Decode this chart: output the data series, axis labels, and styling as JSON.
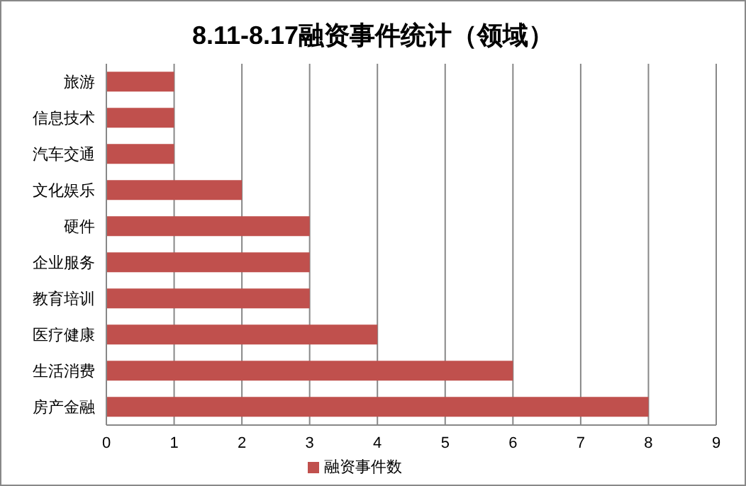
{
  "chart_data": {
    "type": "bar",
    "orientation": "horizontal",
    "title": "8.11-8.17融资事件统计（领域）",
    "categories": [
      "旅游",
      "信息技术",
      "汽车交通",
      "文化娱乐",
      "硬件",
      "企业服务",
      "教育培训",
      "医疗健康",
      "生活消费",
      "房产金融"
    ],
    "series": [
      {
        "name": "融资事件数",
        "color": "#c0504d",
        "values": [
          1,
          1,
          1,
          2,
          3,
          3,
          3,
          4,
          6,
          8
        ]
      }
    ],
    "xlim": [
      0,
      9
    ],
    "xticks": [
      0,
      1,
      2,
      3,
      4,
      5,
      6,
      7,
      8,
      9
    ],
    "grid": "x",
    "legend": "bottom"
  }
}
